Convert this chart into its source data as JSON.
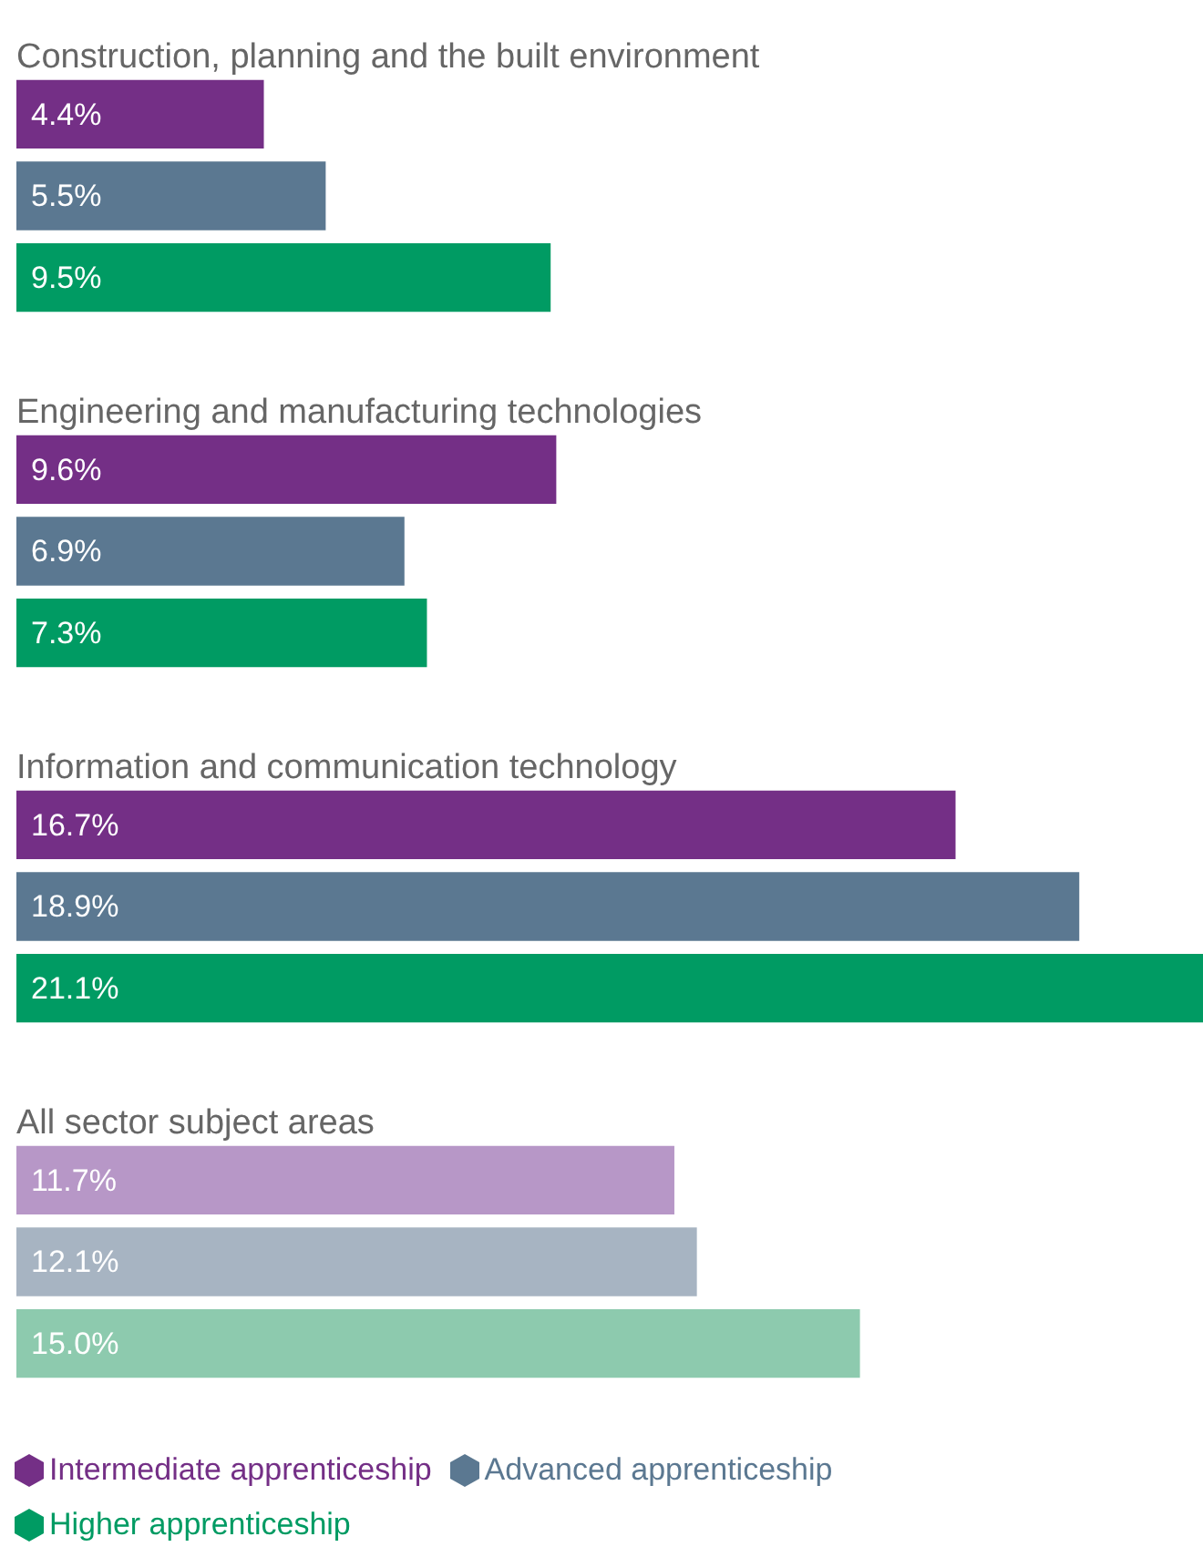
{
  "chart_data": {
    "type": "bar",
    "orientation": "horizontal",
    "categories": [
      "Construction, planning and the built environment",
      "Engineering and manufacturing technologies",
      "Information and communication technology",
      "All sector subject areas"
    ],
    "series": [
      {
        "name": "Intermediate apprenticeship",
        "color": "#742f86",
        "colors": [
          "#742f86",
          "#742f86",
          "#742f86",
          "#b797c7"
        ],
        "values": [
          4.4,
          9.6,
          16.7,
          11.7
        ],
        "value_labels": [
          "4.4%",
          "9.6%",
          "16.7%",
          "11.7%"
        ]
      },
      {
        "name": "Advanced apprenticeship",
        "color": "#5b7891",
        "colors": [
          "#5b7891",
          "#5b7891",
          "#5b7891",
          "#a7b4c2"
        ],
        "values": [
          5.5,
          6.9,
          18.9,
          12.1
        ],
        "value_labels": [
          "5.5%",
          "6.9%",
          "18.9%",
          "12.1%"
        ]
      },
      {
        "name": "Higher apprenticeship",
        "color": "#009b63",
        "colors": [
          "#009b63",
          "#009b63",
          "#009b63",
          "#8dcaae"
        ],
        "values": [
          9.5,
          7.3,
          21.1,
          15.0
        ],
        "value_labels": [
          "9.5%",
          "7.3%",
          "21.1%",
          "15.0%"
        ]
      }
    ],
    "legend": "bottom"
  }
}
